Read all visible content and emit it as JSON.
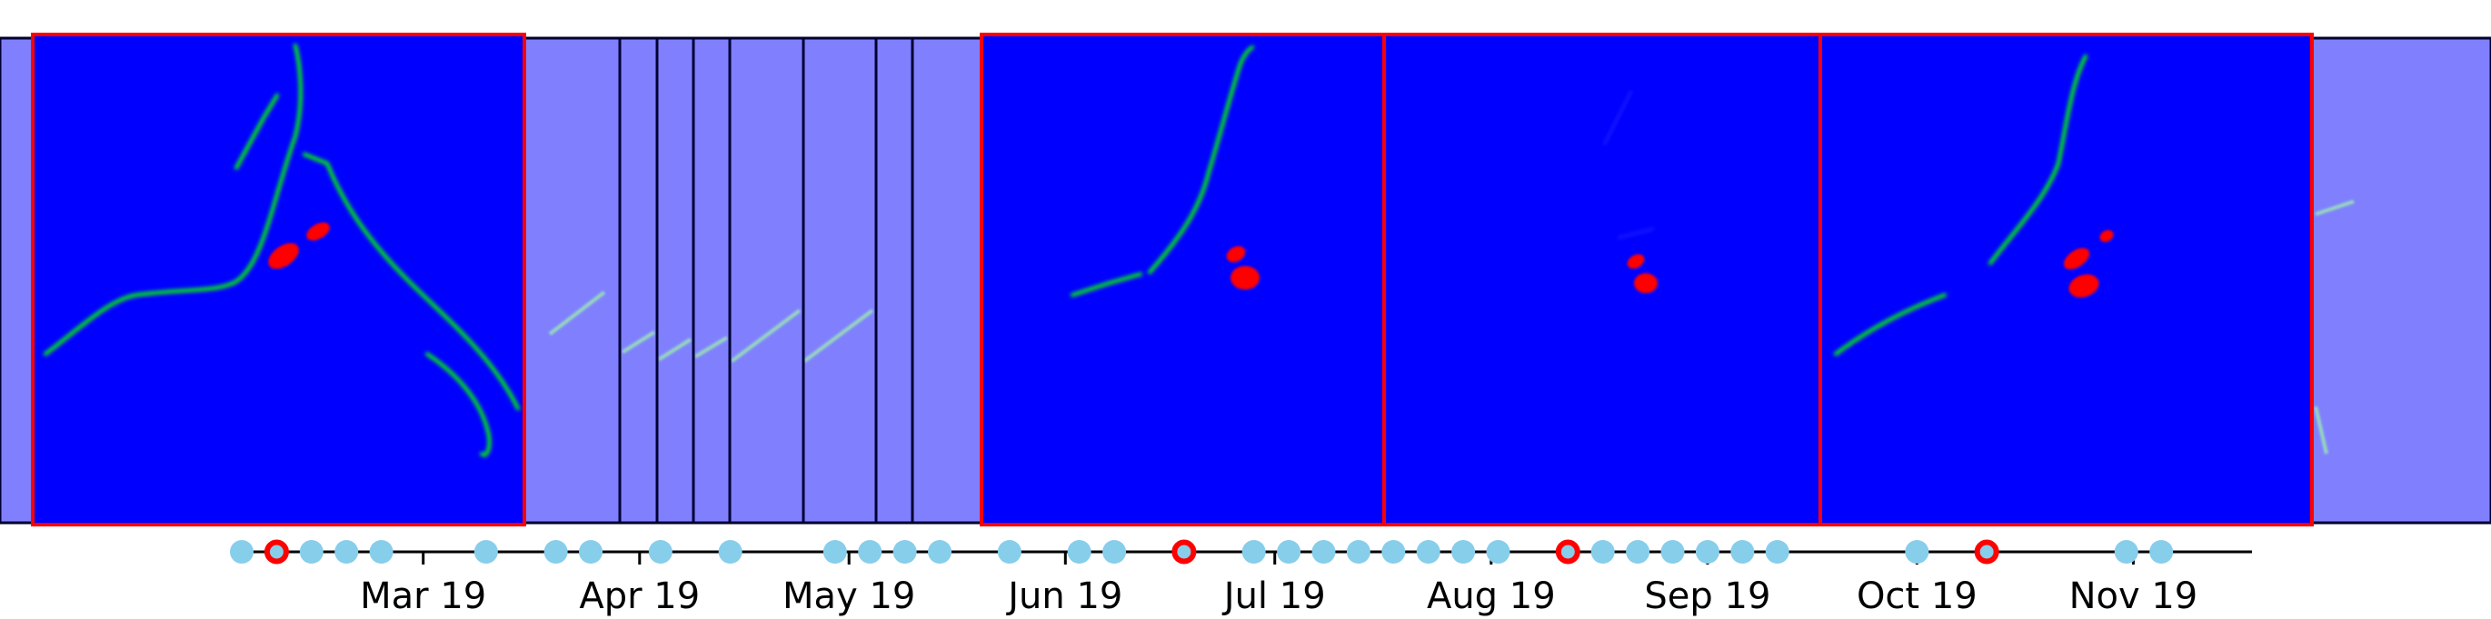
{
  "chart_data": {
    "type": "scatter",
    "title": "",
    "xlabel": "",
    "ylabel": "",
    "x_axis": {
      "ticks": [
        {
          "date": "2019-03-01",
          "label": "Mar 19"
        },
        {
          "date": "2019-04-01",
          "label": "Apr 19"
        },
        {
          "date": "2019-05-01",
          "label": "May 19"
        },
        {
          "date": "2019-06-01",
          "label": "Jun 19"
        },
        {
          "date": "2019-07-01",
          "label": "Jul 19"
        },
        {
          "date": "2019-08-01",
          "label": "Aug 19"
        },
        {
          "date": "2019-09-01",
          "label": "Sep 19"
        },
        {
          "date": "2019-10-01",
          "label": "Oct 19"
        },
        {
          "date": "2019-11-01",
          "label": "Nov 19"
        }
      ],
      "range": [
        "2019-02-03",
        "2019-11-18"
      ]
    },
    "acquisitions": [
      {
        "date": "2019-02-03",
        "selected": false
      },
      {
        "date": "2019-02-08",
        "selected": true
      },
      {
        "date": "2019-02-13",
        "selected": false
      },
      {
        "date": "2019-02-18",
        "selected": false
      },
      {
        "date": "2019-02-23",
        "selected": false
      },
      {
        "date": "2019-03-10",
        "selected": false
      },
      {
        "date": "2019-03-20",
        "selected": false
      },
      {
        "date": "2019-03-25",
        "selected": false
      },
      {
        "date": "2019-04-04",
        "selected": false
      },
      {
        "date": "2019-04-14",
        "selected": false
      },
      {
        "date": "2019-04-29",
        "selected": false
      },
      {
        "date": "2019-05-04",
        "selected": false
      },
      {
        "date": "2019-05-09",
        "selected": false
      },
      {
        "date": "2019-05-14",
        "selected": false
      },
      {
        "date": "2019-05-24",
        "selected": false
      },
      {
        "date": "2019-06-03",
        "selected": false
      },
      {
        "date": "2019-06-08",
        "selected": false
      },
      {
        "date": "2019-06-18",
        "selected": true
      },
      {
        "date": "2019-06-28",
        "selected": false
      },
      {
        "date": "2019-07-03",
        "selected": false
      },
      {
        "date": "2019-07-08",
        "selected": false
      },
      {
        "date": "2019-07-13",
        "selected": false
      },
      {
        "date": "2019-07-18",
        "selected": false
      },
      {
        "date": "2019-07-23",
        "selected": false
      },
      {
        "date": "2019-07-28",
        "selected": false
      },
      {
        "date": "2019-08-02",
        "selected": false
      },
      {
        "date": "2019-08-12",
        "selected": true
      },
      {
        "date": "2019-08-17",
        "selected": false
      },
      {
        "date": "2019-08-22",
        "selected": false
      },
      {
        "date": "2019-08-27",
        "selected": false
      },
      {
        "date": "2019-09-01",
        "selected": false
      },
      {
        "date": "2019-09-06",
        "selected": false
      },
      {
        "date": "2019-09-11",
        "selected": false
      },
      {
        "date": "2019-10-01",
        "selected": false
      },
      {
        "date": "2019-10-11",
        "selected": true
      },
      {
        "date": "2019-10-31",
        "selected": false
      },
      {
        "date": "2019-11-05",
        "selected": false
      }
    ],
    "colors": {
      "point": "#87ceeb",
      "selected_ring": "#ff0000",
      "selected_center": "#87ceeb",
      "axis_line": "#000000",
      "strip_background": "#8080ff",
      "strip_border": "#000033",
      "tile_background": "#0000ff",
      "tile_border": "#ff0000",
      "stripe_divider": "#000033",
      "vessel": "#00ff00",
      "lesion": "#ff0000"
    },
    "grid": false,
    "legend": "none"
  }
}
